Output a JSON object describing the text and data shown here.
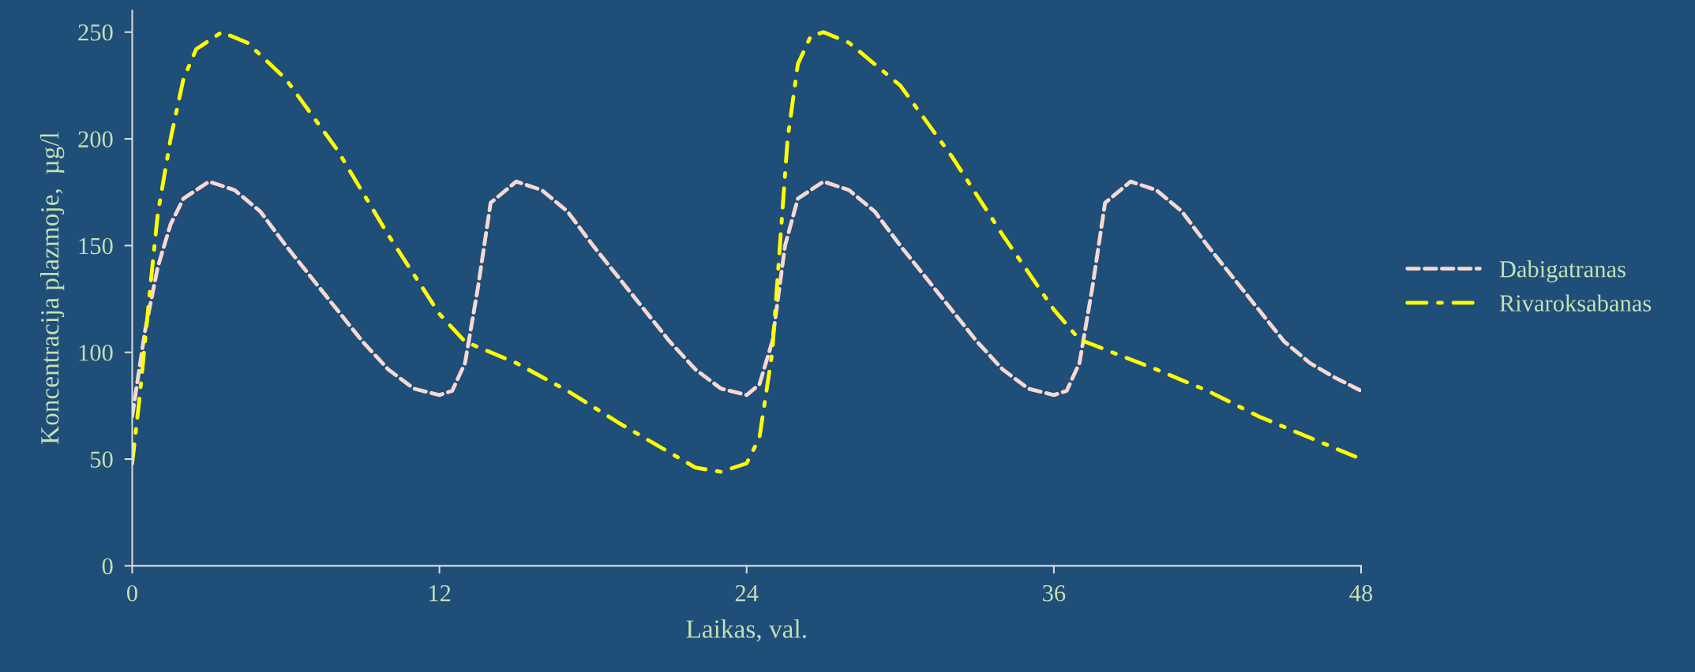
{
  "chart_data": {
    "type": "line",
    "xlabel": "Laikas, val.",
    "ylabel": "Koncentracija plazmoje,  µg/l",
    "xlim": [
      0,
      48
    ],
    "xticks": [
      0,
      12,
      24,
      36,
      48
    ],
    "ylim": [
      0,
      260
    ],
    "yticks": [
      0,
      50,
      100,
      150,
      200,
      250
    ],
    "grid": false,
    "legend": "right",
    "marker": "none",
    "series": [
      {
        "name": "Dabigatranas",
        "color": "#f8d8d2",
        "line_style": "dashed",
        "x": [
          0,
          0.5,
          1,
          1.5,
          2,
          3,
          4,
          5,
          6,
          7,
          8,
          9,
          10,
          11,
          12,
          12.5,
          13,
          13.5,
          14,
          15,
          16,
          17,
          18,
          19,
          20,
          21,
          22,
          23,
          24,
          24.5,
          25,
          25.5,
          26,
          27,
          28,
          29,
          30,
          31,
          32,
          33,
          34,
          35,
          36,
          36.5,
          37,
          37.5,
          38,
          39,
          40,
          41,
          42,
          43,
          44,
          45,
          46,
          47,
          48
        ],
        "values": [
          70,
          110,
          140,
          160,
          172,
          180,
          176,
          166,
          150,
          135,
          120,
          105,
          92,
          83,
          80,
          82,
          95,
          130,
          170,
          180,
          176,
          166,
          150,
          135,
          120,
          105,
          92,
          83,
          80,
          85,
          105,
          150,
          172,
          180,
          176,
          166,
          150,
          135,
          120,
          105,
          92,
          83,
          80,
          82,
          95,
          130,
          170,
          180,
          176,
          166,
          150,
          135,
          120,
          105,
          95,
          88,
          82
        ]
      },
      {
        "name": "Rivaroksabanas",
        "color": "#ffff00",
        "line_style": "dashdot",
        "x": [
          0,
          0.3,
          0.7,
          1,
          1.5,
          2,
          2.5,
          3.5,
          4.5,
          6,
          8,
          10,
          12,
          13,
          15,
          17,
          19,
          21,
          22,
          23,
          24,
          24.5,
          25,
          25.3,
          25.6,
          26,
          26.5,
          27,
          28,
          30,
          32,
          34,
          36,
          37,
          40,
          42,
          44,
          46,
          48
        ],
        "values": [
          48,
          80,
          130,
          165,
          200,
          228,
          242,
          250,
          245,
          228,
          195,
          155,
          118,
          105,
          95,
          82,
          67,
          53,
          46,
          44,
          48,
          60,
          100,
          150,
          200,
          235,
          248,
          250,
          245,
          225,
          192,
          155,
          120,
          106,
          92,
          82,
          70,
          60,
          50
        ]
      }
    ]
  }
}
